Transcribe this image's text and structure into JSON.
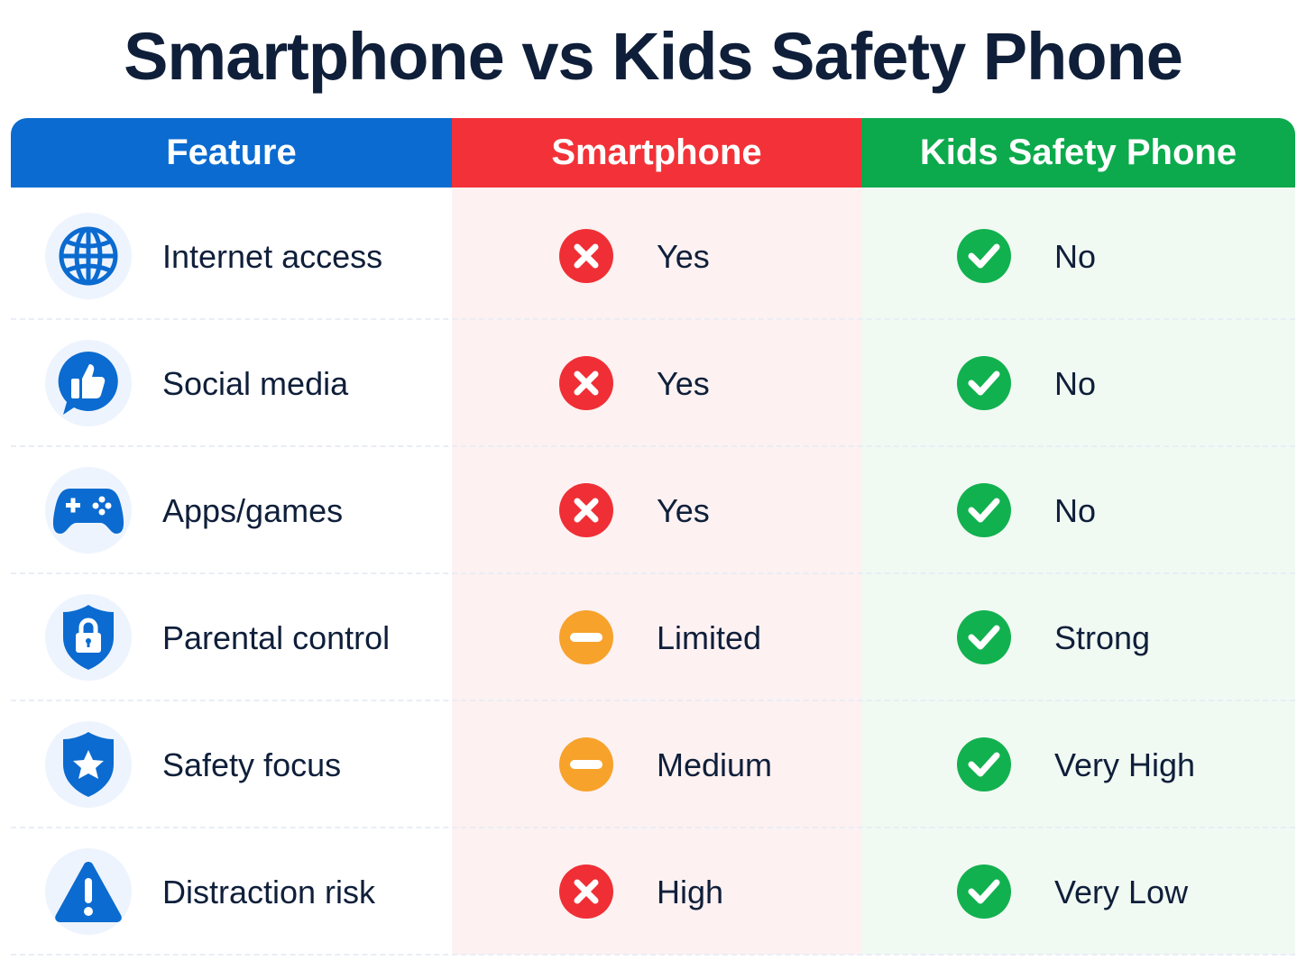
{
  "title": "Smartphone vs Kids Safety Phone",
  "colors": {
    "feature": "#0b6bd0",
    "smartphone": "#f23238",
    "kids": "#0caa4c",
    "bad": "#ef2f35",
    "mid": "#f7a22b",
    "good": "#12b14f"
  },
  "headers": [
    "Feature",
    "Smartphone",
    "Kids Safety Phone"
  ],
  "rows": [
    {
      "icon": "globe-icon",
      "feature": "Internet access",
      "smartphone": "Yes",
      "smartphone_status": "cross",
      "kids": "No",
      "kids_status": "check"
    },
    {
      "icon": "thumbs-up-icon",
      "feature": "Social media",
      "smartphone": "Yes",
      "smartphone_status": "cross",
      "kids": "No",
      "kids_status": "check"
    },
    {
      "icon": "gamepad-icon",
      "feature": "Apps/games",
      "smartphone": "Yes",
      "smartphone_status": "cross",
      "kids": "No",
      "kids_status": "check"
    },
    {
      "icon": "shield-lock-icon",
      "feature": "Parental control",
      "smartphone": "Limited",
      "smartphone_status": "minus",
      "kids": "Strong",
      "kids_status": "check"
    },
    {
      "icon": "shield-star-icon",
      "feature": "Safety focus",
      "smartphone": "Medium",
      "smartphone_status": "minus",
      "kids": "Very High",
      "kids_status": "check"
    },
    {
      "icon": "warning-icon",
      "feature": "Distraction risk",
      "smartphone": "High",
      "smartphone_status": "cross",
      "kids": "Very Low",
      "kids_status": "check"
    }
  ]
}
